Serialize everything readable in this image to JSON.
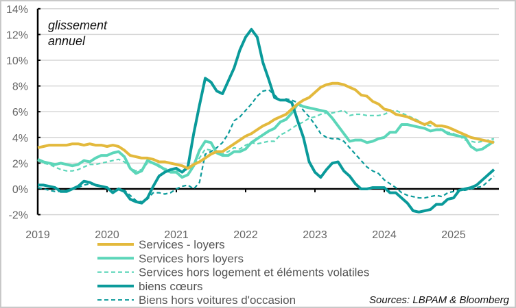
{
  "chart_data": {
    "type": "line",
    "annotation": [
      "glissement",
      "annuel"
    ],
    "source": "Sources: LBPAM & Bloomberg",
    "x_start": "2019-01",
    "x_frequency": "monthly",
    "x_ticks": [
      "2019",
      "2020",
      "2021",
      "2022",
      "2023",
      "2024",
      "2025"
    ],
    "y_ticks": [
      "-2%",
      "0%",
      "2%",
      "4%",
      "6%",
      "8%",
      "10%",
      "12%",
      "14%"
    ],
    "ylim": [
      -2,
      14
    ],
    "grid": true,
    "legend_position": "bottom-left",
    "series": [
      {
        "name": "Services  - loyers",
        "color": "#E3B93C",
        "dash": false,
        "values": [
          3.2,
          3.3,
          3.4,
          3.4,
          3.4,
          3.4,
          3.5,
          3.5,
          3.4,
          3.5,
          3.4,
          3.4,
          3.3,
          3.4,
          3.3,
          3.0,
          2.6,
          2.5,
          2.4,
          2.4,
          2.3,
          2.1,
          2.1,
          2.0,
          1.9,
          1.8,
          1.6,
          1.9,
          2.1,
          2.4,
          2.7,
          2.9,
          2.9,
          3.2,
          3.5,
          3.8,
          4.1,
          4.3,
          4.6,
          4.9,
          5.1,
          5.4,
          5.6,
          5.8,
          6.2,
          6.6,
          6.9,
          7.1,
          7.5,
          7.9,
          8.1,
          8.2,
          8.2,
          8.1,
          7.9,
          7.7,
          7.3,
          7.2,
          6.8,
          6.6,
          6.2,
          6.1,
          5.8,
          5.7,
          5.6,
          5.4,
          5.2,
          5.0,
          5.2,
          4.9,
          4.9,
          4.8,
          4.6,
          4.4,
          4.2,
          4.0,
          3.9,
          3.8,
          3.7,
          3.6
        ]
      },
      {
        "name": "Services hors loyers",
        "color": "#5CD6B9",
        "dash": false,
        "values": [
          2.3,
          2.1,
          2.0,
          1.9,
          2.0,
          1.9,
          1.8,
          1.9,
          2.2,
          2.1,
          2.4,
          2.6,
          2.6,
          2.8,
          2.9,
          2.5,
          1.6,
          1.2,
          1.4,
          2.2,
          2.0,
          1.8,
          1.5,
          1.3,
          1.3,
          0.9,
          1.1,
          1.8,
          3.0,
          3.7,
          3.6,
          2.8,
          2.6,
          2.6,
          2.9,
          2.9,
          3.1,
          3.6,
          3.9,
          4.2,
          4.5,
          4.7,
          5.2,
          5.4,
          5.9,
          6.6,
          6.4,
          6.3,
          6.2,
          6.1,
          6.0,
          5.5,
          4.9,
          4.3,
          3.7,
          3.8,
          3.8,
          3.6,
          3.7,
          3.9,
          4.0,
          4.4,
          4.4,
          5.0,
          5.0,
          4.9,
          4.8,
          4.7,
          4.5,
          4.6,
          4.6,
          4.3,
          4.2,
          4.1,
          4.0,
          3.3,
          3.0,
          3.1,
          3.4,
          3.7
        ]
      },
      {
        "name": "Services hors logement et éléments volatiles",
        "color": "#5CD6B9",
        "dash": true,
        "values": [
          2.2,
          2.0,
          1.9,
          1.7,
          1.5,
          1.4,
          1.4,
          1.5,
          1.7,
          1.9,
          1.9,
          2.0,
          2.1,
          2.2,
          2.3,
          2.1,
          1.6,
          1.4,
          1.5,
          2.0,
          2.0,
          1.7,
          1.6,
          1.4,
          1.4,
          1.4,
          1.5,
          1.8,
          2.4,
          3.1,
          3.0,
          2.8,
          2.7,
          2.9,
          3.2,
          3.1,
          3.4,
          3.6,
          3.5,
          3.6,
          3.7,
          3.7,
          4.2,
          4.4,
          4.7,
          5.0,
          5.2,
          5.5,
          5.6,
          5.8,
          5.9,
          5.9,
          6.0,
          6.1,
          5.7,
          5.8,
          5.8,
          5.7,
          5.7,
          5.7,
          5.8,
          6.0,
          6.1,
          5.9,
          5.7,
          5.5,
          5.3,
          5.0,
          4.9,
          4.9,
          4.6,
          4.4,
          4.3,
          4.1,
          3.8,
          3.7,
          3.6,
          3.7,
          3.8,
          3.9
        ]
      },
      {
        "name": "biens cœurs",
        "color": "#0A9A9A",
        "dash": false,
        "values": [
          0.3,
          0.3,
          0.2,
          0.1,
          -0.2,
          -0.2,
          0.0,
          0.2,
          0.6,
          0.5,
          0.3,
          0.2,
          0.1,
          -0.3,
          0.0,
          -0.2,
          -0.8,
          -1.0,
          -1.1,
          -0.7,
          0.2,
          1.0,
          1.3,
          1.5,
          1.6,
          1.3,
          1.7,
          4.3,
          6.5,
          8.6,
          8.3,
          7.6,
          7.4,
          8.4,
          9.4,
          10.8,
          11.8,
          12.4,
          11.8,
          9.8,
          8.5,
          7.1,
          6.9,
          6.9,
          6.7,
          5.3,
          4.0,
          2.1,
          1.3,
          0.9,
          1.5,
          2.0,
          2.1,
          1.4,
          1.0,
          0.4,
          0.0,
          0.0,
          0.1,
          0.1,
          0.1,
          -0.3,
          -0.3,
          -0.7,
          -1.1,
          -1.7,
          -1.8,
          -1.7,
          -1.6,
          -1.2,
          -1.2,
          -0.8,
          -0.7,
          -0.1,
          0.0,
          0.1,
          0.3,
          0.7,
          1.1,
          1.5
        ]
      },
      {
        "name": "Biens hors voitures d'occasion",
        "color": "#0A9A9A",
        "dash": true,
        "values": [
          0.1,
          0.0,
          -0.1,
          -0.2,
          -0.2,
          -0.1,
          0.0,
          0.1,
          0.3,
          0.4,
          0.3,
          0.2,
          0.1,
          -0.2,
          0.0,
          -0.1,
          -0.5,
          -0.9,
          -1.0,
          -0.8,
          -0.3,
          -0.3,
          -0.4,
          -0.3,
          0.0,
          0.2,
          0.3,
          0.0,
          0.5,
          2.7,
          2.9,
          3.2,
          3.6,
          4.3,
          5.3,
          5.6,
          6.1,
          6.6,
          7.2,
          7.6,
          7.7,
          7.3,
          6.9,
          7.0,
          6.9,
          6.7,
          6.1,
          5.6,
          5.0,
          4.3,
          4.0,
          3.9,
          3.9,
          3.7,
          3.2,
          2.7,
          2.2,
          1.7,
          1.4,
          1.2,
          0.7,
          0.4,
          0.1,
          -0.3,
          -0.5,
          -0.6,
          -0.7,
          -0.7,
          -0.6,
          -0.5,
          -0.6,
          -0.3,
          -0.2,
          -0.1,
          -0.1,
          0.0,
          0.1,
          0.2,
          0.6,
          1.0
        ]
      }
    ]
  }
}
